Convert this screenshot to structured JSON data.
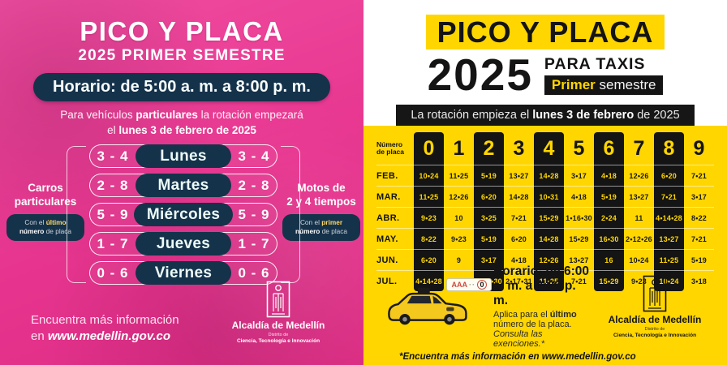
{
  "colors": {
    "pink": "#E7358F",
    "navy": "#15324B",
    "yellow": "#FFD600",
    "ink": "#141414"
  },
  "left": {
    "title": "PICO Y PLACA",
    "subtitle": "2025 PRIMER SEMESTRE",
    "schedule": "Horario: de 5:00 a. m. a 8:00 p. m.",
    "intro_1a": "Para vehículos ",
    "intro_1b": "particulares",
    "intro_1c": " la rotación empezará",
    "intro_2a": "el ",
    "intro_2b": "lunes 3 de febrero de 2025",
    "days": [
      {
        "left": "3 - 4",
        "day": "Lunes",
        "right": "3 - 4"
      },
      {
        "left": "2 - 8",
        "day": "Martes",
        "right": "2 - 8"
      },
      {
        "left": "5 - 9",
        "day": "Miércoles",
        "right": "5 - 9"
      },
      {
        "left": "1 - 7",
        "day": "Jueves",
        "right": "1 - 7"
      },
      {
        "left": "0 - 6",
        "day": "Viernes",
        "right": "0 - 6"
      }
    ],
    "cars_label_1": "Carros",
    "cars_label_2": "particulares",
    "cars_note": {
      "a": "Con el ",
      "b": "último",
      "c": "número",
      "d": " de placa"
    },
    "motos_label_1": "Motos de",
    "motos_label_2": "2 y 4 tiempos",
    "motos_note": {
      "a": "Con el ",
      "b": "primer",
      "c": "número",
      "d": " de placa"
    },
    "footer_line1": "Encuentra más información",
    "footer_line2a": "en ",
    "footer_url": "www.medellin.gov.co",
    "logo": {
      "line1": "Alcaldía de Medellín",
      "line2": "Distrito de",
      "line3": "Ciencia, Tecnología e Innovación"
    }
  },
  "right": {
    "title": "PICO Y PLACA",
    "year": "2025",
    "for_taxis": "PARA TAXIS",
    "semester_a": "Primer",
    "semester_b": " semestre",
    "rotation_a": "La rotación empieza el ",
    "rotation_b": "lunes 3 de febrero",
    "rotation_c": " de 2025",
    "table": {
      "corner_1": "Número",
      "corner_2": "de placa",
      "digits": [
        "0",
        "1",
        "2",
        "3",
        "4",
        "5",
        "6",
        "7",
        "8",
        "9"
      ],
      "months": [
        "FEB.",
        "MAR.",
        "ABR.",
        "MAY.",
        "JUN.",
        "JUL."
      ],
      "rows": [
        [
          "10•24",
          "11•25",
          "5•19",
          "13•27",
          "14•28",
          "3•17",
          "4•18",
          "12•26",
          "6•20",
          "7•21"
        ],
        [
          "11•25",
          "12•26",
          "6•20",
          "14•28",
          "10•31",
          "4•18",
          "5•19",
          "13•27",
          "7•21",
          "3•17"
        ],
        [
          "9•23",
          "10",
          "3•25",
          "7•21",
          "15•29",
          "1•16•30",
          "2•24",
          "11",
          "4•14•28",
          "8•22"
        ],
        [
          "8•22",
          "9•23",
          "5•19",
          "6•20",
          "14•28",
          "15•29",
          "16•30",
          "2•12•26",
          "13•27",
          "7•21"
        ],
        [
          "6•20",
          "9",
          "3•17",
          "4•18",
          "12•26",
          "13•27",
          "16",
          "10•24",
          "11•25",
          "5•19"
        ],
        [
          "4•14•28",
          "8•22",
          "1•16•30",
          "2•17•31",
          "11•25",
          "7•21",
          "15•29",
          "9•23",
          "10•24",
          "3•18"
        ]
      ]
    },
    "plate": {
      "letters": "AAA",
      "dots": "··",
      "digit": "0"
    },
    "schedule_title": "Horario: de 6:00 a. m. a 8:00 p. m.",
    "note1a": "Aplica para el ",
    "note1b": "último",
    "note1c": " número de la placa.",
    "note2": "Consulta las exenciones.*",
    "footnote": "*Encuentra más información en www.medellin.gov.co",
    "logo": {
      "line1": "Alcaldía de Medellín",
      "line2": "Distrito de",
      "line3": "Ciencia, Tecnología e Innovación"
    }
  }
}
